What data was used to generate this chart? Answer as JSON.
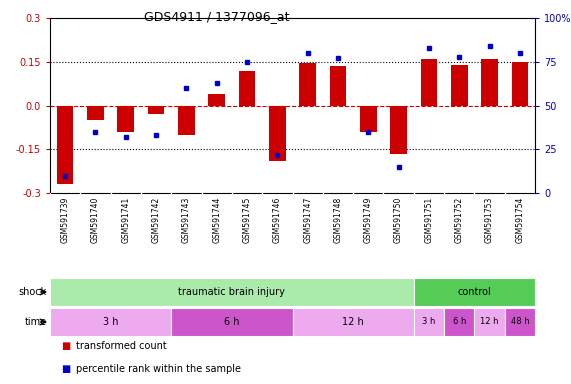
{
  "title": "GDS4911 / 1377096_at",
  "samples": [
    "GSM591739",
    "GSM591740",
    "GSM591741",
    "GSM591742",
    "GSM591743",
    "GSM591744",
    "GSM591745",
    "GSM591746",
    "GSM591747",
    "GSM591748",
    "GSM591749",
    "GSM591750",
    "GSM591751",
    "GSM591752",
    "GSM591753",
    "GSM591754"
  ],
  "bar_values": [
    -0.27,
    -0.05,
    -0.09,
    -0.03,
    -0.1,
    0.04,
    0.12,
    -0.19,
    0.145,
    0.135,
    -0.09,
    -0.165,
    0.16,
    0.14,
    0.16,
    0.15
  ],
  "dot_values": [
    10,
    35,
    32,
    33,
    60,
    63,
    75,
    22,
    80,
    77,
    35,
    15,
    83,
    78,
    84,
    80
  ],
  "bar_color": "#cc0000",
  "dot_color": "#0000cc",
  "ylim_left": [
    -0.3,
    0.3
  ],
  "ylim_right": [
    0,
    100
  ],
  "yticks_left": [
    -0.3,
    -0.15,
    0.0,
    0.15,
    0.3
  ],
  "yticks_right": [
    0,
    25,
    50,
    75,
    100
  ],
  "ytick_labels_right": [
    "0",
    "25",
    "50",
    "75",
    "100%"
  ],
  "hlines": [
    0.15,
    0.0,
    -0.15
  ],
  "hline_styles": [
    "dotted",
    "dashed",
    "dotted"
  ],
  "shock_groups": [
    {
      "label": "traumatic brain injury",
      "start": 0,
      "end": 12,
      "color": "#aaeaaa"
    },
    {
      "label": "control",
      "start": 12,
      "end": 16,
      "color": "#55cc55"
    }
  ],
  "time_groups_tbi": [
    {
      "label": "3 h",
      "start": 0,
      "end": 4,
      "color": "#eeaaee"
    },
    {
      "label": "6 h",
      "start": 4,
      "end": 8,
      "color": "#cc55cc"
    },
    {
      "label": "12 h",
      "start": 8,
      "end": 12,
      "color": "#eeaaee"
    },
    {
      "label": "48 h",
      "start": 12,
      "end": 16,
      "color": "#cc55cc"
    }
  ],
  "time_groups_ctrl": [
    {
      "label": "3 h",
      "start": 12,
      "end": 13,
      "color": "#eeaaee"
    },
    {
      "label": "6 h",
      "start": 13,
      "end": 14,
      "color": "#cc55cc"
    },
    {
      "label": "12 h",
      "start": 14,
      "end": 15,
      "color": "#eeaaee"
    },
    {
      "label": "48 h",
      "start": 15,
      "end": 16,
      "color": "#cc55cc"
    }
  ],
  "shock_label": "shock",
  "time_label": "time",
  "legend_bar": "transformed count",
  "legend_dot": "percentile rank within the sample",
  "background_color": "#ffffff",
  "plot_bg": "#ffffff",
  "sample_bg": "#dddddd"
}
